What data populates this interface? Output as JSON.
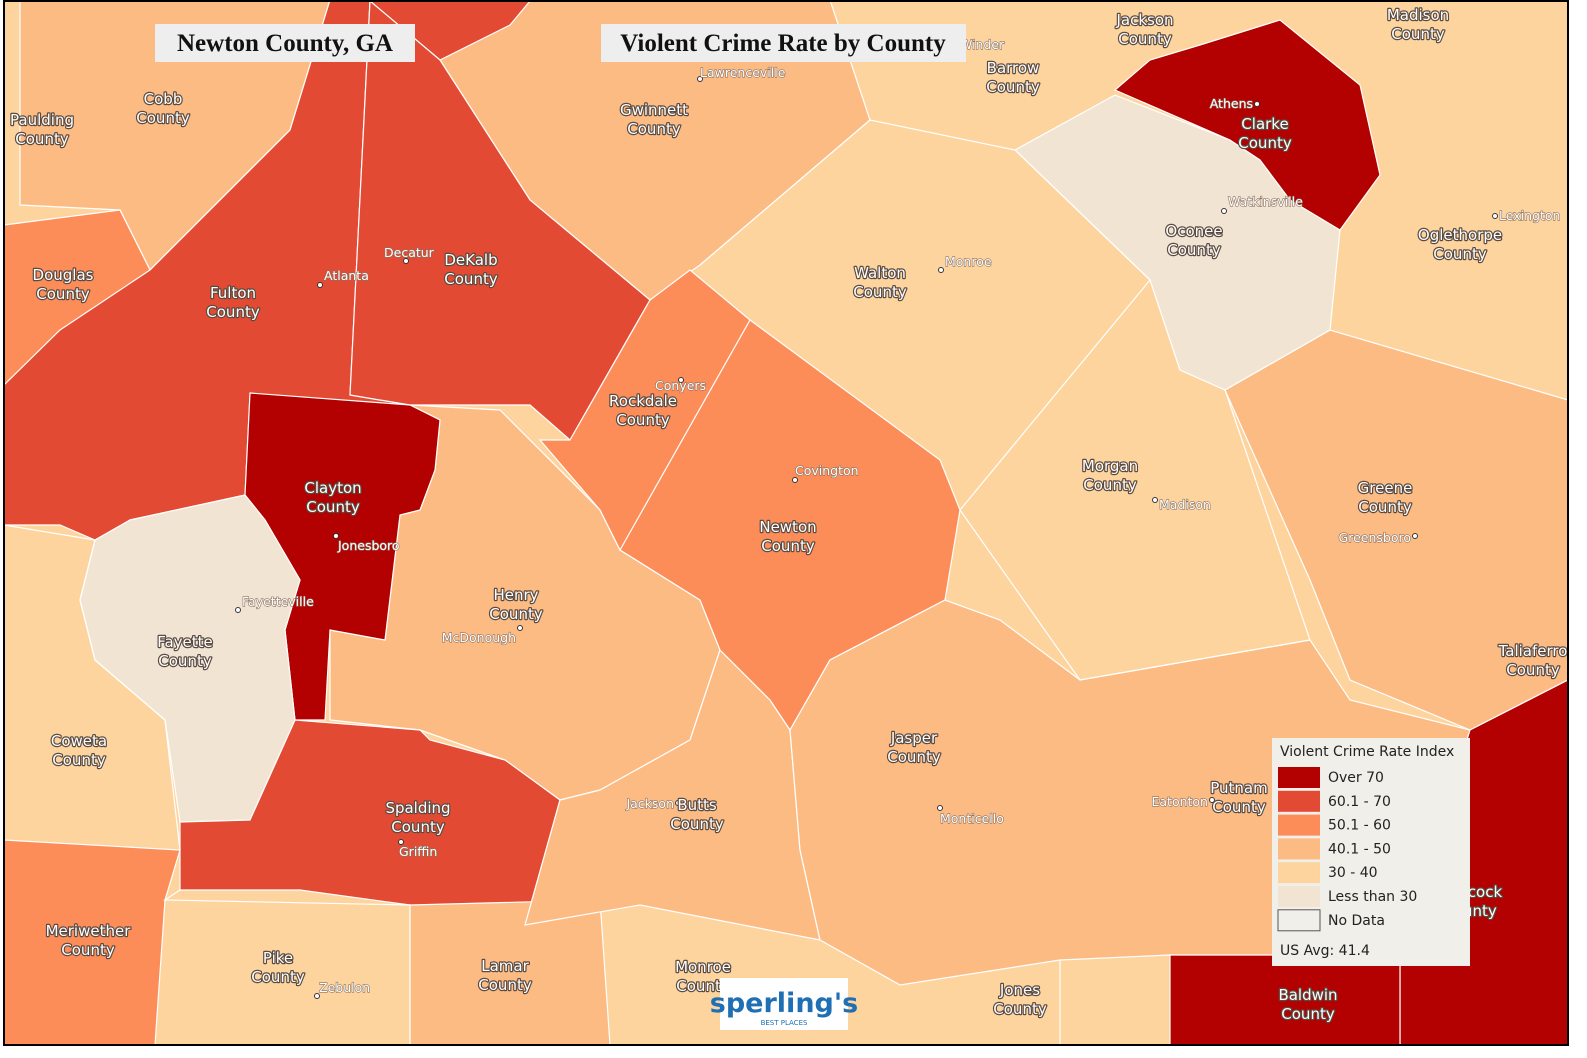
{
  "header": {
    "location": "Newton County, GA",
    "title": "Violent Crime Rate by County"
  },
  "counties": [
    [
      "Paulding",
      "County"
    ],
    [
      "Cobb",
      "County"
    ],
    [
      "Jackson",
      "County"
    ],
    [
      "Madison",
      "County"
    ],
    [
      "Barrow",
      "County"
    ],
    [
      "Gwinnett",
      "County"
    ],
    [
      "Clarke",
      "County"
    ],
    [
      "Douglas",
      "County"
    ],
    [
      "Fulton",
      "County"
    ],
    [
      "DeKalb",
      "County"
    ],
    [
      "Walton",
      "County"
    ],
    [
      "Oconee",
      "County"
    ],
    [
      "Oglethorpe",
      "County"
    ],
    [
      "Rockdale",
      "County"
    ],
    [
      "Clayton",
      "County"
    ],
    [
      "Morgan",
      "County"
    ],
    [
      "Greene",
      "County"
    ],
    [
      "Newton",
      "County"
    ],
    [
      "Henry",
      "County"
    ],
    [
      "Fayette",
      "County"
    ],
    [
      "Taliaferro",
      "County"
    ],
    [
      "Coweta",
      "County"
    ],
    [
      "Jasper",
      "County"
    ],
    [
      "Putnam",
      "County"
    ],
    [
      "Butts",
      "County"
    ],
    [
      "Spalding",
      "County"
    ],
    [
      "Hancock",
      "County"
    ],
    [
      "Meriwether",
      "County"
    ],
    [
      "Pike",
      "County"
    ],
    [
      "Lamar",
      "County"
    ],
    [
      "Monroe",
      "County"
    ],
    [
      "Jones",
      "County"
    ],
    [
      "Baldwin",
      "County"
    ]
  ],
  "cities": [
    "Lawrenceville",
    "Athens",
    "Watkinsville",
    "Lexington",
    "Monroe",
    "Decatur",
    "Atlanta",
    "Conyers",
    "Covington",
    "Madison",
    "Greensboro",
    "Jonesboro",
    "Fayetteville",
    "McDonough",
    "Eatonton",
    "Jackson",
    "Monticello",
    "Griffin",
    "Zebulon",
    "Winder"
  ],
  "legend": {
    "title": "Violent Crime Rate Index",
    "items": [
      {
        "label": "Over 70",
        "color": "#b30000"
      },
      {
        "label": "60.1 - 70",
        "color": "#e34a33"
      },
      {
        "label": "50.1 - 60",
        "color": "#fc8d59"
      },
      {
        "label": "40.1 - 50",
        "color": "#fdbb84"
      },
      {
        "label": "30 - 40",
        "color": "#fdd49e"
      },
      {
        "label": "Less than 30",
        "color": "#f1e4d2"
      },
      {
        "label": "No Data",
        "color": "#f0efe9"
      }
    ],
    "note": "US Avg: 41.4"
  },
  "logo": {
    "name": "sperling's",
    "tagline": "BEST PLACES"
  }
}
